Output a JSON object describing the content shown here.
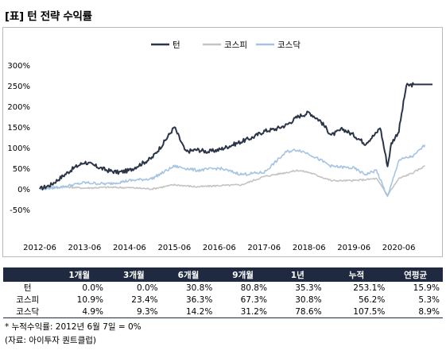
{
  "title": "[표] 턴 전략 수익률",
  "chart_data": {
    "type": "line",
    "legend_position": "top-center",
    "grid": false,
    "x_ticks": [
      "2012-06",
      "2013-06",
      "2014-06",
      "2015-06",
      "2016-06",
      "2017-06",
      "2018-06",
      "2019-06",
      "2020-06"
    ],
    "y_ticks": [
      "300%",
      "250%",
      "200%",
      "150%",
      "100%",
      "50%",
      "0%",
      "-50%"
    ],
    "ylim": [
      -50,
      300
    ],
    "xlim": [
      "2012-06",
      "2021-03"
    ],
    "series": [
      {
        "name": "턴",
        "color": "#2b3547",
        "points": [
          [
            "2012-06",
            0
          ],
          [
            "2012-09",
            10
          ],
          [
            "2012-12",
            30
          ],
          [
            "2013-03",
            50
          ],
          [
            "2013-06",
            65
          ],
          [
            "2013-09",
            55
          ],
          [
            "2013-12",
            45
          ],
          [
            "2014-03",
            40
          ],
          [
            "2014-06",
            45
          ],
          [
            "2014-09",
            60
          ],
          [
            "2014-12",
            75
          ],
          [
            "2015-03",
            110
          ],
          [
            "2015-06",
            150
          ],
          [
            "2015-09",
            90
          ],
          [
            "2015-12",
            95
          ],
          [
            "2016-03",
            90
          ],
          [
            "2016-06",
            95
          ],
          [
            "2016-09",
            105
          ],
          [
            "2016-12",
            115
          ],
          [
            "2017-03",
            125
          ],
          [
            "2017-06",
            140
          ],
          [
            "2017-09",
            145
          ],
          [
            "2017-12",
            155
          ],
          [
            "2018-03",
            175
          ],
          [
            "2018-06",
            185
          ],
          [
            "2018-09",
            165
          ],
          [
            "2018-12",
            130
          ],
          [
            "2019-03",
            145
          ],
          [
            "2019-06",
            130
          ],
          [
            "2019-09",
            110
          ],
          [
            "2019-12",
            135
          ],
          [
            "2020-01",
            150
          ],
          [
            "2020-03",
            55
          ],
          [
            "2020-04",
            110
          ],
          [
            "2020-06",
            140
          ],
          [
            "2020-08",
            250
          ],
          [
            "2020-10",
            253
          ],
          [
            "2021-03",
            253
          ]
        ]
      },
      {
        "name": "코스피",
        "color": "#c4c4c4",
        "points": [
          [
            "2012-06",
            0
          ],
          [
            "2012-12",
            5
          ],
          [
            "2013-06",
            2
          ],
          [
            "2013-12",
            4
          ],
          [
            "2014-06",
            3
          ],
          [
            "2014-12",
            0
          ],
          [
            "2015-06",
            10
          ],
          [
            "2015-12",
            5
          ],
          [
            "2016-06",
            8
          ],
          [
            "2016-12",
            10
          ],
          [
            "2017-06",
            30
          ],
          [
            "2017-12",
            40
          ],
          [
            "2018-03",
            45
          ],
          [
            "2018-06",
            40
          ],
          [
            "2018-12",
            20
          ],
          [
            "2019-06",
            20
          ],
          [
            "2019-12",
            25
          ],
          [
            "2020-03",
            -15
          ],
          [
            "2020-06",
            25
          ],
          [
            "2020-10",
            40
          ],
          [
            "2021-01",
            56
          ]
        ]
      },
      {
        "name": "코스닥",
        "color": "#a6c4e2",
        "points": [
          [
            "2012-06",
            0
          ],
          [
            "2012-12",
            5
          ],
          [
            "2013-06",
            15
          ],
          [
            "2013-12",
            12
          ],
          [
            "2014-06",
            20
          ],
          [
            "2014-12",
            25
          ],
          [
            "2015-06",
            55
          ],
          [
            "2015-12",
            45
          ],
          [
            "2016-06",
            50
          ],
          [
            "2016-12",
            35
          ],
          [
            "2017-06",
            40
          ],
          [
            "2017-12",
            90
          ],
          [
            "2018-03",
            95
          ],
          [
            "2018-06",
            85
          ],
          [
            "2018-12",
            55
          ],
          [
            "2019-06",
            50
          ],
          [
            "2019-09",
            35
          ],
          [
            "2019-12",
            45
          ],
          [
            "2020-03",
            -20
          ],
          [
            "2020-06",
            70
          ],
          [
            "2020-10",
            80
          ],
          [
            "2021-01",
            107
          ]
        ]
      }
    ]
  },
  "table": {
    "headers": [
      "",
      "1개월",
      "3개월",
      "6개월",
      "9개월",
      "1년",
      "누적",
      "연평균"
    ],
    "rows": [
      {
        "label": "턴",
        "values": [
          "0.0%",
          "0.0%",
          "30.8%",
          "80.8%",
          "35.3%",
          "253.1%",
          "15.9%"
        ]
      },
      {
        "label": "코스피",
        "values": [
          "10.9%",
          "23.4%",
          "36.3%",
          "67.3%",
          "30.8%",
          "56.2%",
          "5.3%"
        ]
      },
      {
        "label": "코스닥",
        "values": [
          "4.9%",
          "9.3%",
          "14.2%",
          "31.2%",
          "78.6%",
          "107.5%",
          "8.9%"
        ]
      }
    ]
  },
  "notes": [
    "* 누적수익률: 2012년 6월 7일 = 0%",
    "(자료: 아이투자 퀀트클럽)"
  ]
}
